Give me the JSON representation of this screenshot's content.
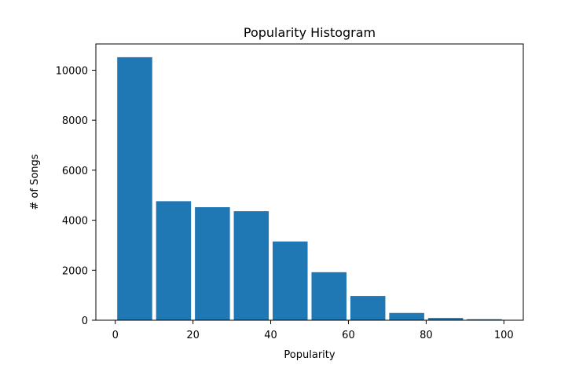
{
  "chart_data": {
    "type": "bar",
    "title": "Popularity Histogram",
    "xlabel": "Popularity",
    "ylabel": "# of Songs",
    "bins": [
      {
        "start": 0,
        "end": 10,
        "value": 10520
      },
      {
        "start": 10,
        "end": 20,
        "value": 4760
      },
      {
        "start": 20,
        "end": 30,
        "value": 4520
      },
      {
        "start": 30,
        "end": 40,
        "value": 4360
      },
      {
        "start": 40,
        "end": 50,
        "value": 3150
      },
      {
        "start": 50,
        "end": 60,
        "value": 1920
      },
      {
        "start": 60,
        "end": 70,
        "value": 970
      },
      {
        "start": 70,
        "end": 80,
        "value": 290
      },
      {
        "start": 80,
        "end": 90,
        "value": 90
      },
      {
        "start": 90,
        "end": 100,
        "value": 40
      }
    ],
    "xlim": [
      -5,
      105
    ],
    "ylim": [
      0,
      11050
    ],
    "xticks": [
      "0",
      "20",
      "40",
      "60",
      "80",
      "100"
    ],
    "yticks": [
      "0",
      "2000",
      "4000",
      "6000",
      "8000",
      "10000"
    ],
    "rwidth": 0.9,
    "bar_color": "#1f77b4",
    "grid": false,
    "legend": "none"
  }
}
